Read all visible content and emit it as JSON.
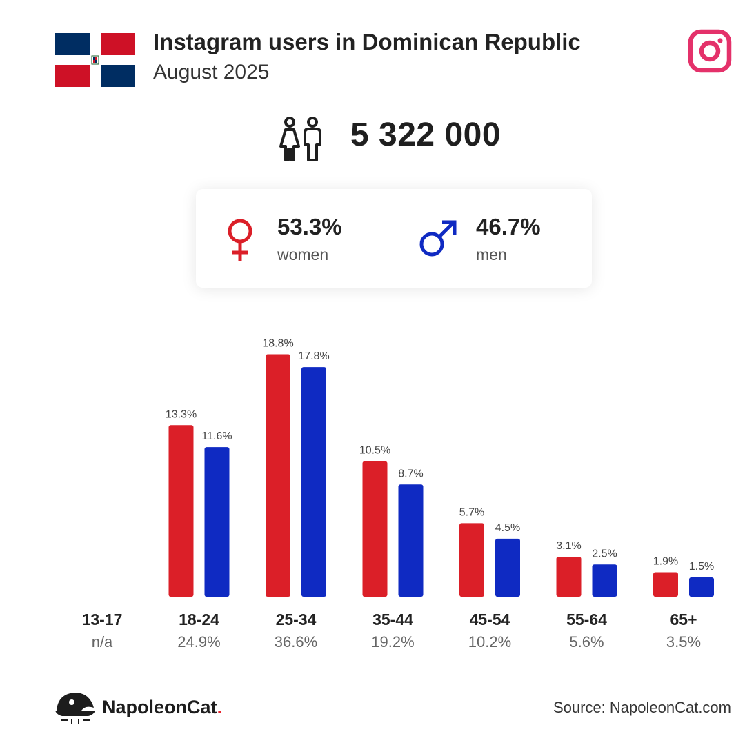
{
  "header": {
    "title": "Instagram users in Dominican Republic",
    "subtitle": "August 2025"
  },
  "total_users": "5 322 000",
  "gender": {
    "women_value": "53.3%",
    "women_label": "women",
    "men_value": "46.7%",
    "men_label": "men"
  },
  "footer": {
    "brand_name": "NapoleonCat",
    "brand_dot": ".",
    "source": "Source: NapoleonCat.com"
  },
  "colors": {
    "women": "#db1f28",
    "men": "#0f2ac2",
    "instagram_icon": "#e4316a",
    "flag_blue": "#002d62",
    "flag_red": "#ce1126"
  },
  "icons": {
    "flag": "dominican-republic-flag-icon",
    "instagram": "instagram-icon",
    "users": "users-icon",
    "women": "female-symbol-icon",
    "men": "male-symbol-icon",
    "brand": "napoleoncat-logo-icon"
  },
  "chart_data": {
    "type": "bar",
    "categories": [
      "13-17",
      "18-24",
      "25-34",
      "35-44",
      "45-54",
      "55-64",
      "65+"
    ],
    "category_totals": [
      "n/a",
      "24.9%",
      "36.6%",
      "19.2%",
      "10.2%",
      "5.6%",
      "3.5%"
    ],
    "series": [
      {
        "name": "women",
        "values": [
          null,
          13.3,
          18.8,
          10.5,
          5.7,
          3.1,
          1.9
        ],
        "labels": [
          "",
          "13.3%",
          "18.8%",
          "10.5%",
          "5.7%",
          "3.1%",
          "1.9%"
        ]
      },
      {
        "name": "men",
        "values": [
          null,
          11.6,
          17.8,
          8.7,
          4.5,
          2.5,
          1.5
        ],
        "labels": [
          "",
          "11.6%",
          "17.8%",
          "8.7%",
          "4.5%",
          "2.5%",
          "1.5%"
        ]
      }
    ],
    "unit": "%",
    "ylim": [
      0,
      20
    ],
    "grid": false,
    "legend": "none"
  }
}
